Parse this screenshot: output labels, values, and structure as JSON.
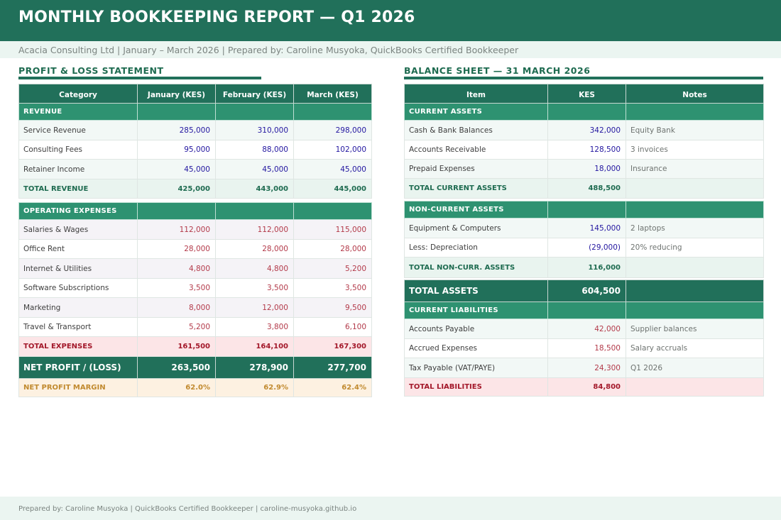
{
  "title": "MONTHLY BOOKKEEPING REPORT — Q1 2026",
  "subtitle": "Acacia Consulting Ltd  |  January – March 2026  |  Prepared by: Caroline Musyoka, QuickBooks Certified Bookkeeper",
  "pl": {
    "title": "PROFIT & LOSS STATEMENT",
    "headers": [
      "Category",
      "January (KES)",
      "February (KES)",
      "March (KES)"
    ],
    "revenue_label": "REVENUE",
    "revenue": [
      {
        "label": "Service Revenue",
        "jan": "285,000",
        "feb": "310,000",
        "mar": "298,000"
      },
      {
        "label": "Consulting Fees",
        "jan": "95,000",
        "feb": "88,000",
        "mar": "102,000"
      },
      {
        "label": "Retainer Income",
        "jan": "45,000",
        "feb": "45,000",
        "mar": "45,000"
      }
    ],
    "total_revenue": {
      "label": "TOTAL REVENUE",
      "jan": "425,000",
      "feb": "443,000",
      "mar": "445,000"
    },
    "expenses_label": "OPERATING EXPENSES",
    "expenses": [
      {
        "label": "Salaries & Wages",
        "jan": "112,000",
        "feb": "112,000",
        "mar": "115,000"
      },
      {
        "label": "Office Rent",
        "jan": "28,000",
        "feb": "28,000",
        "mar": "28,000"
      },
      {
        "label": "Internet & Utilities",
        "jan": "4,800",
        "feb": "4,800",
        "mar": "5,200"
      },
      {
        "label": "Software Subscriptions",
        "jan": "3,500",
        "feb": "3,500",
        "mar": "3,500"
      },
      {
        "label": "Marketing",
        "jan": "8,000",
        "feb": "12,000",
        "mar": "9,500"
      },
      {
        "label": "Travel & Transport",
        "jan": "5,200",
        "feb": "3,800",
        "mar": "6,100"
      }
    ],
    "total_expenses": {
      "label": "TOTAL EXPENSES",
      "jan": "161,500",
      "feb": "164,100",
      "mar": "167,300"
    },
    "net_profit": {
      "label": "NET PROFIT / (LOSS)",
      "jan": "263,500",
      "feb": "278,900",
      "mar": "277,700"
    },
    "net_margin": {
      "label": "NET PROFIT MARGIN",
      "jan": "62.0%",
      "feb": "62.9%",
      "mar": "62.4%"
    }
  },
  "bs": {
    "title": "BALANCE SHEET — 31 MARCH 2026",
    "headers": [
      "Item",
      "KES",
      "Notes"
    ],
    "current_assets_label": "CURRENT ASSETS",
    "current_assets": [
      {
        "label": "Cash & Bank Balances",
        "value": "342,000",
        "note": "Equity Bank"
      },
      {
        "label": "Accounts Receivable",
        "value": "128,500",
        "note": "3 invoices"
      },
      {
        "label": "Prepaid Expenses",
        "value": "18,000",
        "note": "Insurance"
      }
    ],
    "total_current_assets": {
      "label": "TOTAL CURRENT ASSETS",
      "value": "488,500"
    },
    "noncurrent_label": "NON-CURRENT ASSETS",
    "noncurrent": [
      {
        "label": "Equipment & Computers",
        "value": "145,000",
        "note": "2 laptops"
      },
      {
        "label": "Less: Depreciation",
        "value": "(29,000)",
        "note": "20% reducing"
      }
    ],
    "total_noncurrent": {
      "label": "TOTAL NON-CURR. ASSETS",
      "value": "116,000"
    },
    "total_assets": {
      "label": "TOTAL ASSETS",
      "value": "604,500"
    },
    "current_liab_label": "CURRENT LIABILITIES",
    "current_liab": [
      {
        "label": "Accounts Payable",
        "value": "42,000",
        "note": "Supplier balances"
      },
      {
        "label": "Accrued Expenses",
        "value": "18,500",
        "note": "Salary accruals"
      },
      {
        "label": "Tax Payable (VAT/PAYE)",
        "value": "24,300",
        "note": "Q1 2026"
      }
    ],
    "total_liab": {
      "label": "TOTAL LIABILITIES",
      "value": "84,800"
    }
  },
  "footer": "Prepared by: Caroline Musyoka  |  QuickBooks Certified Bookkeeper  |  caroline-musyoka.github.io",
  "colors": {
    "header": "#21705a",
    "category": "#2e9271",
    "revenue_value": "#2316a0",
    "expense_value": "#b33a4a",
    "total_expense": "#a3182a",
    "margin": "#c18a2f"
  }
}
